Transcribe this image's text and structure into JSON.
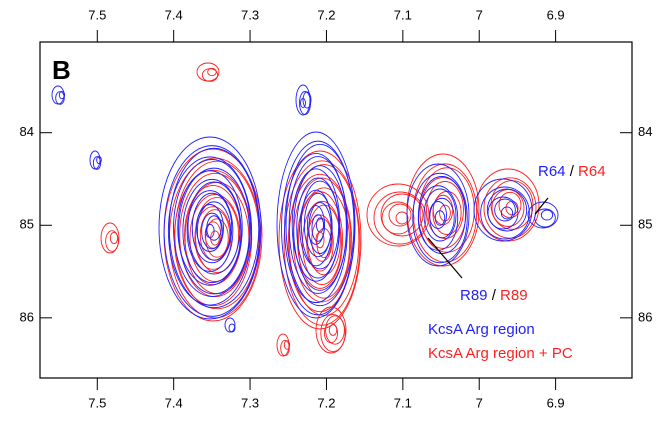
{
  "chart_data": {
    "type": "contour",
    "panel_label": "B",
    "xlim": [
      7.575,
      6.8
    ],
    "xticks": [
      7.5,
      7.4,
      7.3,
      7.2,
      7.1,
      7.0,
      6.9
    ],
    "ylim": [
      83.02,
      86.65
    ],
    "yticks": [
      84,
      85,
      86
    ],
    "series": [
      {
        "name": "KcsA Arg region",
        "color": "#1f1fff"
      },
      {
        "name": "KcsA Arg region + PC",
        "color": "#ff1f1f"
      }
    ],
    "annotations": [
      {
        "blue": "R64",
        "separator": " / ",
        "red": "R64"
      },
      {
        "blue": "R89",
        "separator": " / ",
        "red": "R89"
      }
    ],
    "legend": "bottom-right"
  }
}
